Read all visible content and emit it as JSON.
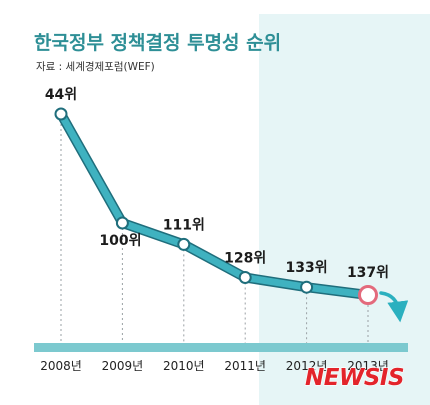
{
  "chart_data": {
    "type": "line",
    "title": "한국정부 정책결정 투명성 순위",
    "subtitle": "자료 : 세계경제포럼(WEF)",
    "categories": [
      "2008년",
      "2009년",
      "2010년",
      "2011년",
      "2012년",
      "2013년"
    ],
    "values": [
      44,
      100,
      111,
      128,
      133,
      137
    ],
    "value_labels": [
      "44위",
      "100위",
      "111위",
      "128위",
      "133위",
      "137위"
    ],
    "y_direction": "rank (lower position = worse rank)",
    "ylim": [
      44,
      137
    ],
    "highlight_index": 5,
    "grid": false,
    "legend": "none"
  },
  "colors": {
    "title": "#2e8f96",
    "line": "#3fb2c0",
    "line_outline": "#1f6e7c",
    "highlight": "#e36a7c",
    "highlight_label": "#c0392b",
    "shade": "#e6f5f6",
    "axis_band": "#7cc9cf",
    "arrow": "#2bb0bf",
    "logo": "#e3242b"
  },
  "icons": {
    "trend_arrow": "down-arrow-icon"
  },
  "watermark": "NEWSIS"
}
